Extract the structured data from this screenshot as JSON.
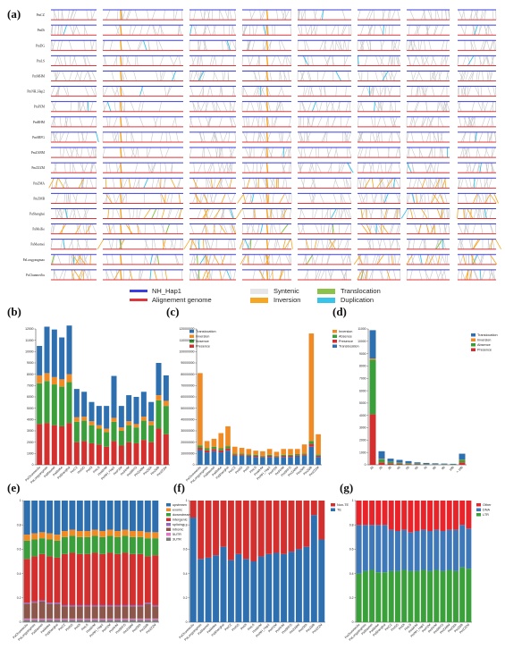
{
  "panel_labels": [
    "(a)",
    "(b)",
    "(c)",
    "(d)",
    "(e)",
    "(f)",
    "(g)"
  ],
  "colors": {
    "blue_line": "#3a3ee0",
    "red_line": "#e0353a",
    "syntenic": "#c8c8c8",
    "inversion": "#f5a623",
    "translocation": "#8bc34a",
    "duplication": "#38c3e8",
    "bar_translocation": "#2e6fb0",
    "bar_inversion": "#f08a24",
    "bar_absence": "#3a9e3a",
    "bar_presence": "#d32f2f",
    "upstream": "#2e6fb0",
    "exonic": "#f08a24",
    "downstream": "#3a9e3a",
    "intergenic": "#d32f2f",
    "splicing": "#9467bd",
    "intronic": "#8c564b",
    "utr5": "#e377c2",
    "utr3": "#7f7f7f",
    "other": "#e8232a",
    "dna": "#3f78b8",
    "ltr": "#3aa13a"
  },
  "panel_a": {
    "rows": [
      "PmCZ",
      "PmDi",
      "PmDG",
      "PmLS",
      "PmMHM",
      "PmNH_Hap2",
      "PmPZM",
      "PmRHM",
      "PmSRFG",
      "PmZABM",
      "PmZZZM",
      "PmZMA",
      "PmZMB",
      "PaShanghai",
      "PaMeiKe",
      "PaMaomei",
      "PaLongyangmao",
      "PaChunmeiJiu"
    ],
    "legend": {
      "NH_Hap1": "NH_Hap1",
      "Alignment": "Alignement genome",
      "Syntenic": "Syntenic",
      "Inversion": "Inversion",
      "Translocation": "Translocation",
      "Duplication": "Duplication"
    }
  },
  "chart_data": [
    {
      "panel": "b",
      "type": "bar",
      "stacked": true,
      "ylim": [
        0,
        12000
      ],
      "yticks": [
        0,
        1000,
        2000,
        3000,
        4000,
        5000,
        6000,
        7000,
        8000,
        9000,
        10000,
        11000,
        12000
      ],
      "categories": [
        "PaChunmeiJiu",
        "PaLongyangmao",
        "PaMaomei",
        "PaMeiKe",
        "PaShanghai",
        "PmCZ",
        "PmDG",
        "PmDi",
        "PmLS",
        "PmMHM",
        "PmNH_Hap2",
        "PmPZM",
        "PmRHM",
        "PmSRFG",
        "PmZABM",
        "PmZMA",
        "PmZMB",
        "PmZZZM"
      ],
      "series": [
        {
          "name": "Presence",
          "values": [
            3600,
            3700,
            3500,
            3400,
            3700,
            2000,
            2100,
            1900,
            1800,
            1600,
            2100,
            1700,
            2000,
            1900,
            2200,
            2000,
            3200,
            2700
          ]
        },
        {
          "name": "Absence",
          "values": [
            3600,
            3700,
            3600,
            3500,
            3600,
            1800,
            1800,
            1600,
            1400,
            1300,
            1700,
            1300,
            1500,
            1400,
            1700,
            1500,
            2500,
            2500
          ]
        },
        {
          "name": "Inversion",
          "values": [
            700,
            700,
            650,
            650,
            700,
            400,
            350,
            350,
            300,
            300,
            350,
            300,
            350,
            300,
            350,
            350,
            450,
            450
          ]
        },
        {
          "name": "Translocation",
          "values": [
            2600,
            4100,
            4200,
            3700,
            4300,
            2500,
            2200,
            1700,
            1700,
            2000,
            3700,
            1900,
            2300,
            2400,
            2200,
            1700,
            2850,
            2250
          ]
        }
      ]
    },
    {
      "panel": "c",
      "type": "bar",
      "stacked": true,
      "ylim": [
        0,
        120000000
      ],
      "yticks": [
        0,
        10000000,
        20000000,
        30000000,
        40000000,
        50000000,
        60000000,
        70000000,
        80000000,
        90000000,
        100000000,
        110000000,
        120000000
      ],
      "categories": [
        "PaChunmeiJiu",
        "PaLongyangmao",
        "PaMaomei",
        "PaMeiKe",
        "PaShanghai",
        "PmCZ",
        "PmDG",
        "PmDi",
        "PmLS",
        "PmMHM",
        "PmNH_Hap2",
        "PmPZM",
        "PmRHM",
        "PmSRFG",
        "PmZABM",
        "PmZMA",
        "PmZMB",
        "PmZZZM"
      ],
      "series": [
        {
          "name": "Translocation",
          "values": [
            13000000,
            11000000,
            12000000,
            11000000,
            12500000,
            8000000,
            8000000,
            7500000,
            7000000,
            6500000,
            7000000,
            6500000,
            7000000,
            7000000,
            7500000,
            8000000,
            16000000,
            7000000
          ]
        },
        {
          "name": "Presence",
          "values": [
            2000000,
            1800000,
            2000000,
            1800000,
            2000000,
            1000000,
            1000000,
            900000,
            900000,
            800000,
            900000,
            800000,
            900000,
            900000,
            1000000,
            1000000,
            2500000,
            1000000
          ]
        },
        {
          "name": "Absence",
          "values": [
            2000000,
            1800000,
            2000000,
            1800000,
            2000000,
            1000000,
            1000000,
            900000,
            900000,
            800000,
            900000,
            800000,
            900000,
            900000,
            1000000,
            1000000,
            2500000,
            1000000
          ]
        },
        {
          "name": "Inversion",
          "values": [
            64000000,
            6400000,
            7000000,
            13400000,
            17500000,
            6000000,
            5000000,
            4700000,
            3700000,
            3900000,
            5200000,
            3400000,
            5200000,
            5200000,
            4500000,
            8000000,
            95000000,
            18000000
          ]
        }
      ]
    },
    {
      "panel": "d",
      "type": "bar",
      "stacked": true,
      "ylim": [
        0,
        11000
      ],
      "yticks": [
        0,
        1000,
        2000,
        3000,
        4000,
        5000,
        6000,
        7000,
        8000,
        9000,
        10000,
        11000
      ],
      "categories": [
        "10",
        "20",
        "30",
        "40",
        "50",
        "60",
        "70",
        "80",
        "90",
        "100",
        "> 100"
      ],
      "series": [
        {
          "name": "Presence",
          "values": [
            4100,
            200,
            100,
            80,
            60,
            40,
            30,
            25,
            20,
            15,
            200
          ]
        },
        {
          "name": "Absence",
          "values": [
            4400,
            250,
            120,
            90,
            70,
            50,
            35,
            30,
            25,
            20,
            200
          ]
        },
        {
          "name": "Inversion",
          "values": [
            100,
            30,
            20,
            15,
            10,
            8,
            6,
            5,
            4,
            3,
            30
          ]
        },
        {
          "name": "Translocation",
          "values": [
            2300,
            620,
            260,
            215,
            160,
            102,
            79,
            60,
            51,
            42,
            470
          ]
        }
      ]
    },
    {
      "panel": "e",
      "type": "bar",
      "stacked": true,
      "ylim": [
        0,
        1
      ],
      "yticks": [
        0,
        0.2,
        0.4,
        0.6,
        0.8,
        1.0
      ],
      "categories": [
        "PaChunmeiJiu",
        "PaLongyangmao",
        "PaMaomei",
        "PaMeiKe",
        "PaShanghai",
        "PmCZ",
        "PmDG",
        "PmDi",
        "PmLS",
        "PmMHM",
        "PmNH_Hap2",
        "PmPZM",
        "PmRHM",
        "PmSRFG",
        "PmZABM",
        "PmZMA",
        "PmZMB",
        "PmZZZM"
      ],
      "series": [
        {
          "name": "3UTR",
          "values": [
            0.02,
            0.02,
            0.02,
            0.02,
            0.02,
            0.02,
            0.02,
            0.02,
            0.02,
            0.02,
            0.02,
            0.02,
            0.02,
            0.02,
            0.02,
            0.02,
            0.02,
            0.02
          ]
        },
        {
          "name": "5UTR",
          "values": [
            0.01,
            0.01,
            0.01,
            0.01,
            0.01,
            0.01,
            0.01,
            0.01,
            0.01,
            0.01,
            0.01,
            0.01,
            0.01,
            0.01,
            0.01,
            0.01,
            0.01,
            0.01
          ]
        },
        {
          "name": "intronic",
          "values": [
            0.12,
            0.13,
            0.14,
            0.12,
            0.12,
            0.1,
            0.1,
            0.1,
            0.1,
            0.1,
            0.1,
            0.1,
            0.1,
            0.1,
            0.1,
            0.1,
            0.12,
            0.1
          ]
        },
        {
          "name": "splicing",
          "values": [
            0.01,
            0.01,
            0.01,
            0.01,
            0.01,
            0.01,
            0.01,
            0.01,
            0.01,
            0.01,
            0.01,
            0.01,
            0.01,
            0.01,
            0.01,
            0.01,
            0.01,
            0.01
          ]
        },
        {
          "name": "intergenic",
          "values": [
            0.36,
            0.37,
            0.38,
            0.38,
            0.37,
            0.42,
            0.43,
            0.42,
            0.42,
            0.43,
            0.42,
            0.43,
            0.42,
            0.43,
            0.42,
            0.42,
            0.38,
            0.41
          ]
        },
        {
          "name": "downstream",
          "values": [
            0.15,
            0.14,
            0.13,
            0.14,
            0.14,
            0.14,
            0.14,
            0.14,
            0.14,
            0.14,
            0.14,
            0.14,
            0.14,
            0.14,
            0.14,
            0.14,
            0.15,
            0.14
          ]
        },
        {
          "name": "exonic",
          "values": [
            0.05,
            0.05,
            0.05,
            0.05,
            0.05,
            0.05,
            0.05,
            0.05,
            0.05,
            0.05,
            0.05,
            0.05,
            0.05,
            0.05,
            0.05,
            0.05,
            0.05,
            0.05
          ]
        },
        {
          "name": "upstream",
          "values": [
            0.28,
            0.27,
            0.26,
            0.27,
            0.28,
            0.25,
            0.24,
            0.25,
            0.25,
            0.24,
            0.25,
            0.24,
            0.25,
            0.24,
            0.25,
            0.25,
            0.26,
            0.26
          ]
        }
      ]
    },
    {
      "panel": "f",
      "type": "bar",
      "stacked": true,
      "ylim": [
        0,
        1
      ],
      "yticks": [
        0,
        0.2,
        0.4,
        0.6,
        0.8,
        1.0
      ],
      "categories": [
        "PaChunmeiJiu",
        "PaLongyangmao",
        "PaMaomei",
        "PaMeiKe",
        "PaShanghai",
        "PmCZ",
        "PmDG",
        "PmDi",
        "PmLS",
        "PmMHM",
        "PmNH_Hap2",
        "PmPZM",
        "PmRHM",
        "PmSRFG",
        "PmZABM",
        "PmZMA",
        "PmZMB",
        "PmZZZM"
      ],
      "series": [
        {
          "name": "TE",
          "values": [
            0.86,
            0.52,
            0.53,
            0.55,
            0.62,
            0.51,
            0.56,
            0.52,
            0.5,
            0.54,
            0.56,
            0.57,
            0.56,
            0.58,
            0.6,
            0.62,
            0.88,
            0.68
          ]
        },
        {
          "name": "Non-TE",
          "values": [
            0.14,
            0.48,
            0.47,
            0.45,
            0.38,
            0.49,
            0.44,
            0.48,
            0.5,
            0.46,
            0.44,
            0.43,
            0.44,
            0.42,
            0.4,
            0.38,
            0.12,
            0.32
          ]
        }
      ]
    },
    {
      "panel": "g",
      "type": "bar",
      "stacked": true,
      "ylim": [
        0,
        1
      ],
      "yticks": [
        0,
        0.2,
        0.4,
        0.6,
        0.8,
        1.0
      ],
      "categories": [
        "PaChunmeiJiu",
        "PaLongyangmao",
        "PaMaomei",
        "PaMeiKe",
        "PaShanghai",
        "PmCZ",
        "PmDG",
        "PmDi",
        "PmLS",
        "PmMHM",
        "PmNH_Hap2",
        "PmPZM",
        "PmRHM",
        "PmSRFG",
        "PmZABM",
        "PmZMA",
        "PmZMB",
        "PmZZZM"
      ],
      "series": [
        {
          "name": "LTR",
          "values": [
            0.4,
            0.42,
            0.43,
            0.41,
            0.41,
            0.42,
            0.42,
            0.43,
            0.42,
            0.42,
            0.43,
            0.42,
            0.43,
            0.42,
            0.43,
            0.42,
            0.45,
            0.44
          ]
        },
        {
          "name": "DNA",
          "values": [
            0.4,
            0.38,
            0.37,
            0.39,
            0.39,
            0.34,
            0.33,
            0.33,
            0.32,
            0.33,
            0.33,
            0.33,
            0.33,
            0.33,
            0.33,
            0.34,
            0.35,
            0.33
          ]
        },
        {
          "name": "Other",
          "values": [
            0.2,
            0.2,
            0.2,
            0.2,
            0.2,
            0.24,
            0.25,
            0.24,
            0.26,
            0.25,
            0.24,
            0.25,
            0.24,
            0.25,
            0.24,
            0.24,
            0.2,
            0.23
          ]
        }
      ]
    }
  ]
}
